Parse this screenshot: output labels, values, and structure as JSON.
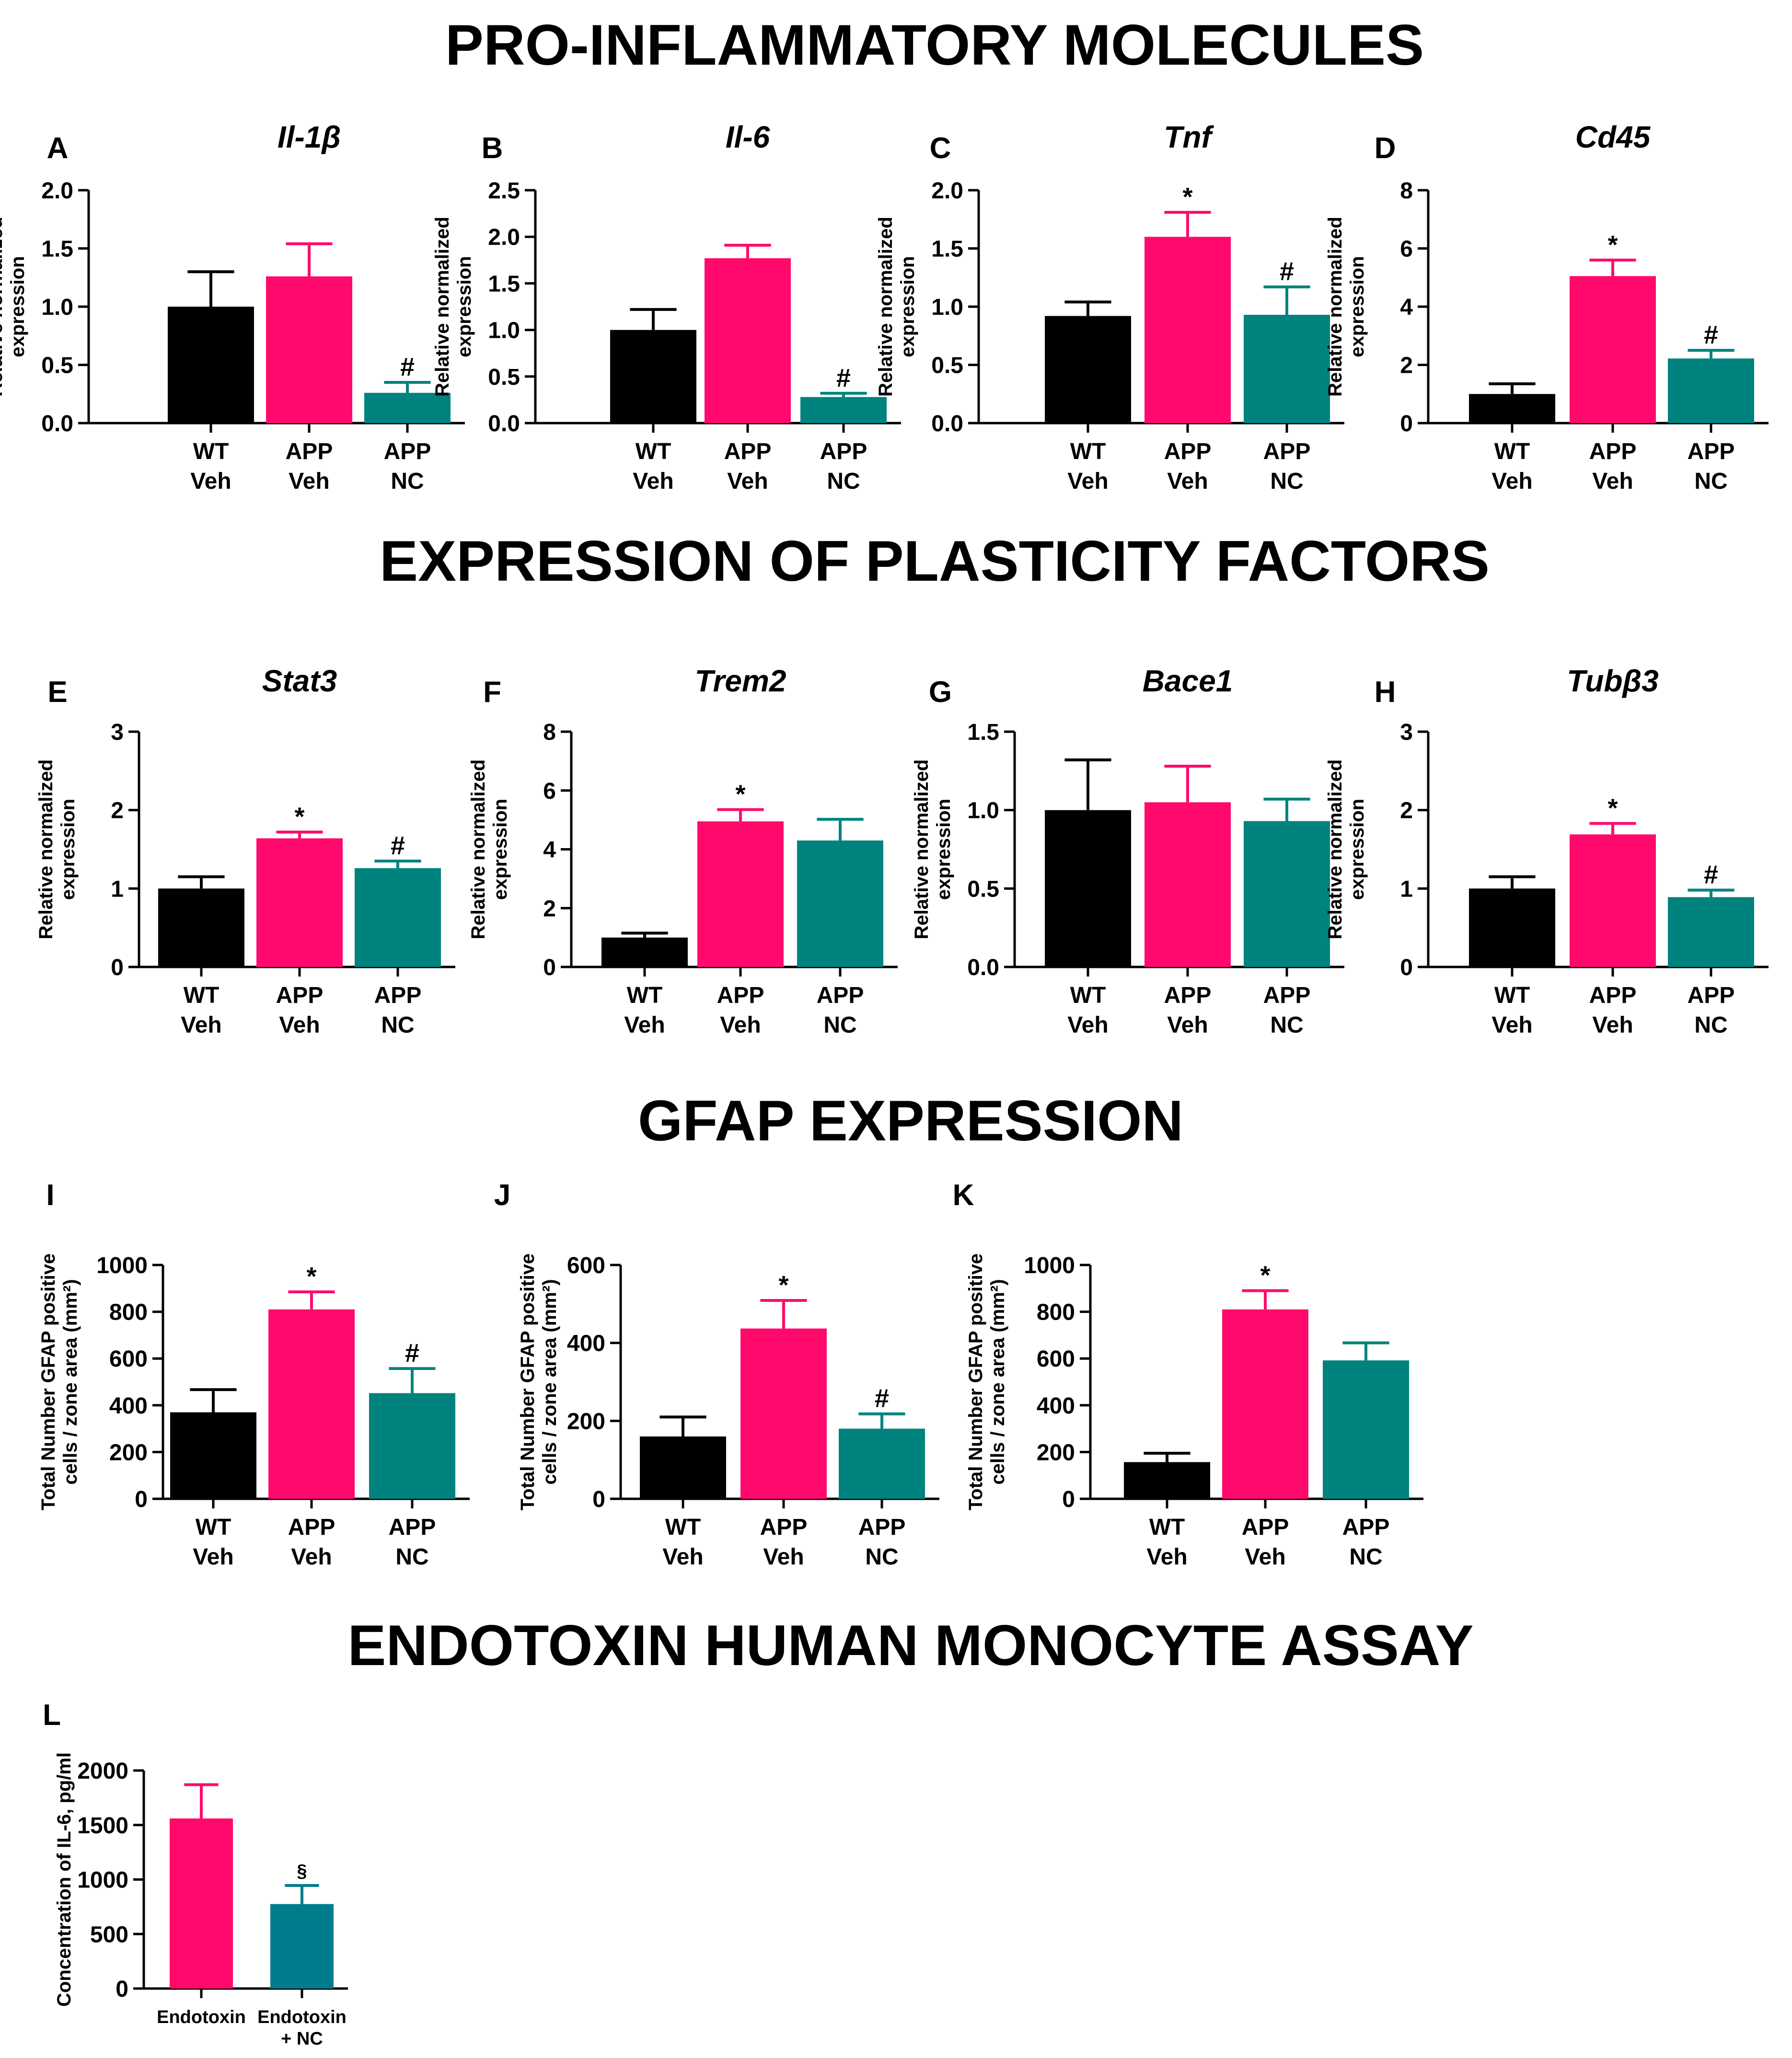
{
  "sections": {
    "pro_inflammatory": "PRO-INFLAMMATORY MOLECULES",
    "plasticity": "EXPRESSION OF PLASTICITY FACTORS",
    "gfap": "GFAP EXPRESSION",
    "endotoxin": "ENDOTOXIN HUMAN MONOCYTE ASSAY"
  },
  "colors": {
    "black": "#000000",
    "pink": "#ff0a6c",
    "teal": "#00837e",
    "blue_teal": "#007d8c"
  },
  "chart_data": [
    {
      "id": "A",
      "type": "bar",
      "title": "Il-1β",
      "ylabel": [
        "Relative normalized",
        "expression"
      ],
      "categories": [
        [
          "WT",
          "Veh"
        ],
        [
          "APP",
          "Veh"
        ],
        [
          "APP",
          "NC"
        ]
      ],
      "values": [
        1.0,
        1.26,
        0.26
      ],
      "errors": [
        0.3,
        0.28,
        0.09
      ],
      "colors": [
        "black",
        "pink",
        "teal"
      ],
      "annotations": [
        "",
        "",
        "#"
      ],
      "ylim": [
        0,
        2.0
      ],
      "yticks": [
        0.0,
        0.5,
        1.0,
        1.5,
        2.0
      ],
      "ytick_labels": [
        "0.0",
        "0.5",
        "1.0",
        "1.5",
        "2.0"
      ]
    },
    {
      "id": "B",
      "type": "bar",
      "title": "Il-6",
      "ylabel": [
        "Relative normalized",
        "expression"
      ],
      "categories": [
        [
          "WT",
          "Veh"
        ],
        [
          "APP",
          "Veh"
        ],
        [
          "APP",
          "NC"
        ]
      ],
      "values": [
        1.0,
        1.77,
        0.28
      ],
      "errors": [
        0.22,
        0.14,
        0.04
      ],
      "colors": [
        "black",
        "pink",
        "teal"
      ],
      "annotations": [
        "",
        "",
        "#"
      ],
      "ylim": [
        0,
        2.5
      ],
      "yticks": [
        0.0,
        0.5,
        1.0,
        1.5,
        2.0,
        2.5
      ],
      "ytick_labels": [
        "0.0",
        "0.5",
        "1.0",
        "1.5",
        "2.0",
        "2.5"
      ]
    },
    {
      "id": "C",
      "type": "bar",
      "title": "Tnf",
      "ylabel": [
        "Relative normalized",
        "expression"
      ],
      "categories": [
        [
          "WT",
          "Veh"
        ],
        [
          "APP",
          "Veh"
        ],
        [
          "APP",
          "NC"
        ]
      ],
      "values": [
        0.92,
        1.6,
        0.93
      ],
      "errors": [
        0.12,
        0.21,
        0.24
      ],
      "colors": [
        "black",
        "pink",
        "teal"
      ],
      "annotations": [
        "",
        "*",
        "#"
      ],
      "ylim": [
        0,
        2.0
      ],
      "yticks": [
        0.0,
        0.5,
        1.0,
        1.5,
        2.0
      ],
      "ytick_labels": [
        "0.0",
        "0.5",
        "1.0",
        "1.5",
        "2.0"
      ]
    },
    {
      "id": "D",
      "type": "bar",
      "title": "Cd45",
      "ylabel": [
        "Relative normalized",
        "expression"
      ],
      "categories": [
        [
          "WT",
          "Veh"
        ],
        [
          "APP",
          "Veh"
        ],
        [
          "APP",
          "NC"
        ]
      ],
      "values": [
        1.0,
        5.05,
        2.22
      ],
      "errors": [
        0.35,
        0.55,
        0.28
      ],
      "colors": [
        "black",
        "pink",
        "teal"
      ],
      "annotations": [
        "",
        "*",
        "#"
      ],
      "ylim": [
        0,
        8
      ],
      "yticks": [
        0,
        2,
        4,
        6,
        8
      ],
      "ytick_labels": [
        "0",
        "2",
        "4",
        "6",
        "8"
      ]
    },
    {
      "id": "E",
      "type": "bar",
      "title": "Stat3",
      "ylabel": [
        "Relative normalized",
        "expression"
      ],
      "categories": [
        [
          "WT",
          "Veh"
        ],
        [
          "APP",
          "Veh"
        ],
        [
          "APP",
          "NC"
        ]
      ],
      "values": [
        1.0,
        1.64,
        1.26
      ],
      "errors": [
        0.15,
        0.08,
        0.09
      ],
      "colors": [
        "black",
        "pink",
        "teal"
      ],
      "annotations": [
        "",
        "*",
        "#"
      ],
      "ylim": [
        0,
        3
      ],
      "yticks": [
        0,
        1,
        2,
        3
      ],
      "ytick_labels": [
        "0",
        "1",
        "2",
        "3"
      ]
    },
    {
      "id": "F",
      "type": "bar",
      "title": "Trem2",
      "ylabel": [
        "Relative normalized",
        "expression"
      ],
      "categories": [
        [
          "WT",
          "Veh"
        ],
        [
          "APP",
          "Veh"
        ],
        [
          "APP",
          "NC"
        ]
      ],
      "values": [
        1.0,
        4.95,
        4.3
      ],
      "errors": [
        0.15,
        0.4,
        0.72
      ],
      "colors": [
        "black",
        "pink",
        "teal"
      ],
      "annotations": [
        "",
        "*",
        ""
      ],
      "ylim": [
        0,
        8
      ],
      "yticks": [
        0,
        2,
        4,
        6,
        8
      ],
      "ytick_labels": [
        "0",
        "2",
        "4",
        "6",
        "8"
      ]
    },
    {
      "id": "G",
      "type": "bar",
      "title": "Bace1",
      "ylabel": [
        "Relative normalized",
        "expression"
      ],
      "categories": [
        [
          "WT",
          "Veh"
        ],
        [
          "APP",
          "Veh"
        ],
        [
          "APP",
          "NC"
        ]
      ],
      "values": [
        1.0,
        1.05,
        0.93
      ],
      "errors": [
        0.32,
        0.23,
        0.14
      ],
      "colors": [
        "black",
        "pink",
        "teal"
      ],
      "annotations": [
        "",
        "",
        ""
      ],
      "ylim": [
        0,
        1.5
      ],
      "yticks": [
        0.0,
        0.5,
        1.0,
        1.5
      ],
      "ytick_labels": [
        "0.0",
        "0.5",
        "1.0",
        "1.5"
      ]
    },
    {
      "id": "H",
      "type": "bar",
      "title": "Tubβ3",
      "ylabel": [
        "Relative normalized",
        "expression"
      ],
      "categories": [
        [
          "WT",
          "Veh"
        ],
        [
          "APP",
          "Veh"
        ],
        [
          "APP",
          "NC"
        ]
      ],
      "values": [
        1.0,
        1.69,
        0.89
      ],
      "errors": [
        0.15,
        0.14,
        0.09
      ],
      "colors": [
        "black",
        "pink",
        "teal"
      ],
      "annotations": [
        "",
        "*",
        "#"
      ],
      "ylim": [
        0,
        3
      ],
      "yticks": [
        0,
        1,
        2,
        3
      ],
      "ytick_labels": [
        "0",
        "1",
        "2",
        "3"
      ]
    },
    {
      "id": "I",
      "type": "bar",
      "title": "",
      "ylabel": [
        "Total Number GFAP positive",
        "cells / zone area (mm²)"
      ],
      "categories": [
        [
          "WT",
          "Veh"
        ],
        [
          "APP",
          "Veh"
        ],
        [
          "APP",
          "NC"
        ]
      ],
      "values": [
        370,
        810,
        452
      ],
      "errors": [
        97,
        75,
        105
      ],
      "colors": [
        "black",
        "pink",
        "teal"
      ],
      "annotations": [
        "",
        "*",
        "#"
      ],
      "ylim": [
        0,
        1000
      ],
      "yticks": [
        0,
        200,
        400,
        600,
        800,
        1000
      ],
      "ytick_labels": [
        "0",
        "200",
        "400",
        "600",
        "800",
        "1000"
      ]
    },
    {
      "id": "J",
      "type": "bar",
      "title": "",
      "ylabel": [
        "Total Number GFAP positive",
        "cells / zone area (mm²)"
      ],
      "categories": [
        [
          "WT",
          "Veh"
        ],
        [
          "APP",
          "Veh"
        ],
        [
          "APP",
          "NC"
        ]
      ],
      "values": [
        160,
        437,
        180
      ],
      "errors": [
        50,
        72,
        38
      ],
      "colors": [
        "black",
        "pink",
        "teal"
      ],
      "annotations": [
        "",
        "*",
        "#"
      ],
      "ylim": [
        0,
        600
      ],
      "yticks": [
        0,
        200,
        400,
        600
      ],
      "ytick_labels": [
        "0",
        "200",
        "400",
        "600"
      ]
    },
    {
      "id": "K",
      "type": "bar",
      "title": "",
      "ylabel": [
        "Total Number GFAP positive",
        "cells / zone area (mm²)"
      ],
      "categories": [
        [
          "WT",
          "Veh"
        ],
        [
          "APP",
          "Veh"
        ],
        [
          "APP",
          "NC"
        ]
      ],
      "values": [
        157,
        810,
        592
      ],
      "errors": [
        38,
        80,
        75
      ],
      "colors": [
        "black",
        "pink",
        "teal"
      ],
      "annotations": [
        "",
        "*",
        ""
      ],
      "ylim": [
        0,
        1000
      ],
      "yticks": [
        0,
        200,
        400,
        600,
        800,
        1000
      ],
      "ytick_labels": [
        "0",
        "200",
        "400",
        "600",
        "800",
        "1000"
      ]
    },
    {
      "id": "L",
      "type": "bar",
      "title": "",
      "ylabel": [
        "Concentration of IL-6, pg/ml"
      ],
      "categories": [
        [
          "Endotoxin"
        ],
        [
          "Endotoxin",
          "+ NC"
        ]
      ],
      "values": [
        1560,
        775
      ],
      "errors": [
        310,
        170
      ],
      "colors": [
        "pink",
        "blue_teal"
      ],
      "annotations": [
        "",
        "§"
      ],
      "ylim": [
        0,
        2000
      ],
      "yticks": [
        0,
        500,
        1000,
        1500,
        2000
      ],
      "ytick_labels": [
        "0",
        "500",
        "1000",
        "1500",
        "2000"
      ]
    }
  ]
}
